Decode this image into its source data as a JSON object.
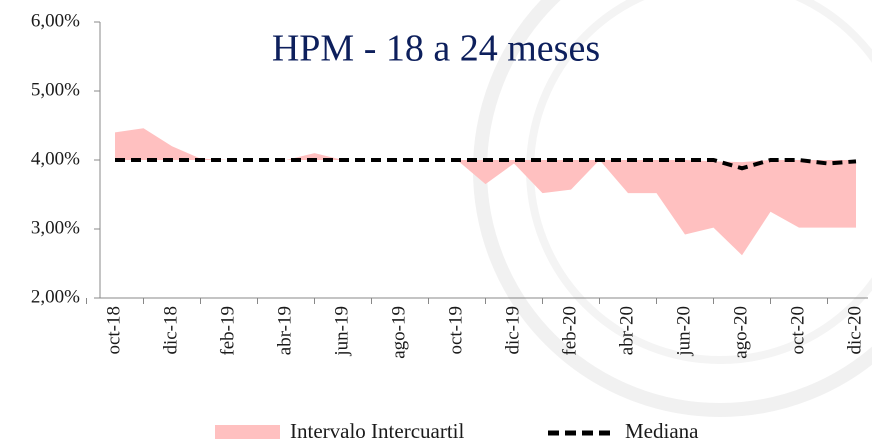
{
  "chart_data": {
    "type": "band-line",
    "title": "HPM - 18 a 24 meses",
    "categories": [
      "oct-18",
      null,
      "dic-18",
      null,
      "feb-19",
      null,
      "abr-19",
      null,
      "jun-19",
      null,
      "ago-19",
      null,
      "oct-19",
      null,
      "dic-19",
      null,
      "feb-20",
      null,
      "abr-20",
      null,
      "jun-20",
      null,
      "ago-20",
      null,
      "oct-20",
      null,
      "dic-20"
    ],
    "series": [
      {
        "name": "Intervalo Intercuartil",
        "color": "#ffc0c0",
        "values": [
          4.4,
          4.46,
          4.2,
          4.02,
          4.0,
          4.0,
          4.0,
          4.1,
          4.0,
          4.0,
          4.0,
          4.0,
          4.0,
          4.0,
          4.0,
          4.0,
          4.0,
          4.0,
          4.0,
          4.0,
          4.0,
          3.98,
          3.97,
          4.0,
          4.0,
          4.0,
          4.0
        ],
        "lower": [
          4.0,
          4.0,
          4.0,
          4.0,
          4.0,
          4.0,
          4.0,
          4.0,
          4.0,
          4.0,
          4.0,
          4.0,
          4.0,
          3.65,
          3.95,
          3.52,
          3.57,
          4.0,
          3.52,
          3.52,
          2.92,
          3.02,
          2.62,
          3.25,
          3.02,
          3.02,
          3.02
        ]
      },
      {
        "name": "Mediana",
        "color": "#000000",
        "values": [
          4.0,
          4.0,
          4.0,
          4.0,
          4.0,
          4.0,
          4.0,
          4.0,
          4.0,
          4.0,
          4.0,
          4.0,
          4.0,
          4.0,
          4.0,
          4.0,
          4.0,
          4.0,
          4.0,
          4.0,
          4.0,
          4.0,
          3.88,
          4.0,
          4.0,
          3.95,
          3.98
        ]
      }
    ],
    "ylim": [
      2,
      6
    ],
    "yticks": [
      {
        "value": 2,
        "label": "2,00%"
      },
      {
        "value": 3,
        "label": "3,00%"
      },
      {
        "value": 4,
        "label": "4,00%"
      },
      {
        "value": 5,
        "label": "5,00%"
      },
      {
        "value": 6,
        "label": "6,00%"
      }
    ]
  }
}
